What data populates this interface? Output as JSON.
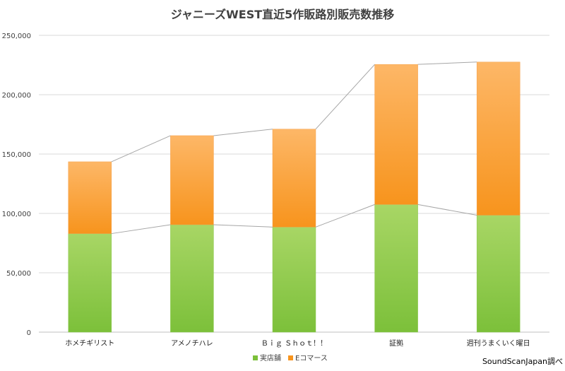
{
  "chart_data": {
    "type": "bar",
    "stacked": true,
    "title": "ジャニーズWEST直近5作販路別販売数推移",
    "categories": [
      "ホメチギリスト",
      "アメノチハレ",
      "Ｂｉｇ Ｓｈｏｔ！！",
      "証拠",
      "週刊うまくいく曜日"
    ],
    "series": [
      {
        "name": "実店舗",
        "values": [
          83000,
          90500,
          88500,
          107500,
          98500
        ],
        "color_top": "#a8d665",
        "color_bottom": "#7cc03a"
      },
      {
        "name": "Eコマース",
        "values": [
          60500,
          75000,
          82500,
          118000,
          129000
        ],
        "color_top": "#fdb767",
        "color_bottom": "#f7941d"
      }
    ],
    "ylim": [
      0,
      250000
    ],
    "yticks": [
      "0",
      "50,000",
      "100,000",
      "150,000",
      "200,000",
      "250,000"
    ],
    "ytick_values": [
      0,
      50000,
      100000,
      150000,
      200000,
      250000
    ],
    "series_lines": true,
    "grid": true,
    "legend_position": "bottom",
    "source_note": "SoundScanJapan調べ"
  }
}
